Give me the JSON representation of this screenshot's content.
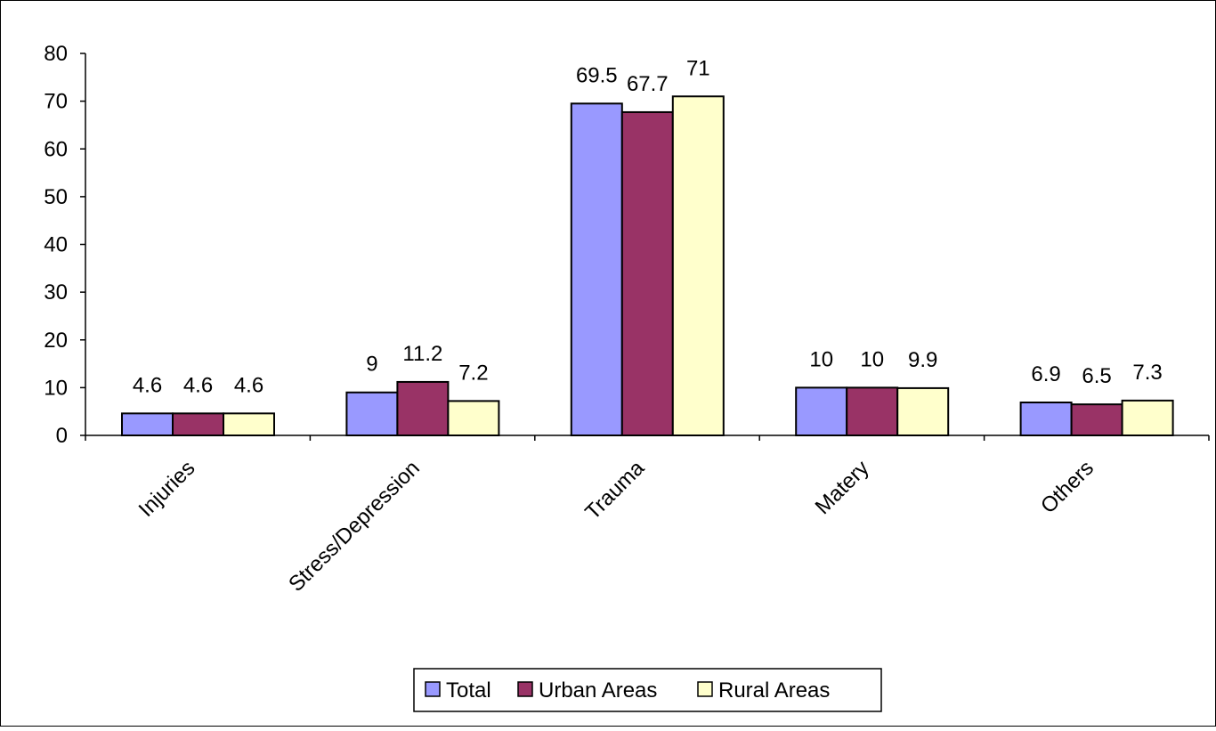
{
  "chart_data": {
    "type": "bar",
    "categories": [
      "Injuries",
      "Stress/Depression",
      "Trauma",
      "Matery",
      "Others"
    ],
    "series": [
      {
        "name": "Total",
        "values": [
          4.6,
          9,
          69.5,
          10,
          6.9
        ],
        "labels": [
          "4.6",
          "9",
          "69.5",
          "10",
          "6.9"
        ],
        "color": "#9999ff"
      },
      {
        "name": "Urban Areas",
        "values": [
          4.6,
          11.2,
          67.7,
          10,
          6.5
        ],
        "labels": [
          "4.6",
          "11.2",
          "67.7",
          "10",
          "6.5"
        ],
        "color": "#993366"
      },
      {
        "name": "Rural Areas",
        "values": [
          4.6,
          7.2,
          71,
          9.9,
          7.3
        ],
        "labels": [
          "4.6",
          "7.2",
          "71",
          "9.9",
          "7.3"
        ],
        "color": "#ffffcc"
      }
    ],
    "y_ticks": [
      "0",
      "10",
      "20",
      "30",
      "40",
      "50",
      "60",
      "70",
      "80"
    ],
    "ylim": [
      0,
      80
    ],
    "grid": false,
    "legend_position": "bottom"
  }
}
